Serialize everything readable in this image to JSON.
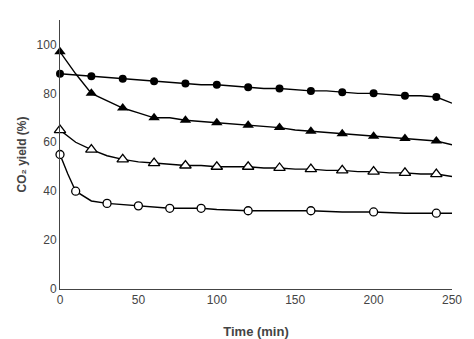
{
  "chart_data": {
    "type": "line",
    "xlabel": "Time (min)",
    "ylabel": "CO₂ yield (%)",
    "xlim": [
      0,
      250
    ],
    "ylim": [
      0,
      110
    ],
    "xticks": [
      0,
      50,
      100,
      150,
      200,
      250
    ],
    "yticks": [
      0,
      20,
      40,
      60,
      80,
      100
    ],
    "grid": false,
    "series": [
      {
        "type": "line",
        "line_style": "solid",
        "color": "#000000",
        "x": [
          0,
          10,
          20,
          30,
          40,
          50,
          60,
          70,
          80,
          90,
          100,
          110,
          120,
          130,
          140,
          150,
          160,
          170,
          180,
          190,
          200,
          210,
          220,
          230,
          240,
          250
        ],
        "values": [
          88,
          87.5,
          87,
          86.5,
          86,
          85.5,
          85,
          84.5,
          84,
          83.5,
          83.5,
          83,
          82.5,
          82,
          82,
          81.5,
          81,
          81,
          80.5,
          80,
          80,
          79.5,
          79,
          79,
          78.5,
          76
        ]
      },
      {
        "type": "scatter",
        "marker": "circle",
        "color": "#000000",
        "x": [
          0,
          20,
          40,
          60,
          80,
          100,
          120,
          140,
          160,
          180,
          200,
          220,
          240
        ],
        "values": [
          88,
          87,
          86,
          85,
          84,
          83.5,
          82.5,
          82,
          81,
          80.5,
          80,
          79,
          78.5
        ]
      },
      {
        "type": "line",
        "line_style": "solid",
        "color": "#000000",
        "x": [
          0,
          10,
          20,
          30,
          40,
          50,
          60,
          70,
          80,
          90,
          100,
          110,
          120,
          130,
          140,
          150,
          160,
          170,
          180,
          190,
          200,
          210,
          220,
          230,
          240,
          250
        ],
        "values": [
          97,
          88,
          80,
          77,
          74,
          72,
          70,
          70,
          69,
          68.5,
          68,
          67.5,
          67,
          66.5,
          66,
          65,
          64.5,
          64,
          63.5,
          63,
          62.5,
          62,
          61.5,
          61,
          60.5,
          59
        ]
      },
      {
        "type": "scatter",
        "marker": "triangle-up",
        "color": "#000000",
        "x": [
          0,
          20,
          40,
          60,
          80,
          100,
          120,
          140,
          160,
          180,
          200,
          220,
          240
        ],
        "values": [
          97,
          80,
          74,
          70,
          69,
          68,
          67,
          66,
          64.5,
          63.5,
          62.5,
          61.5,
          60.5
        ]
      },
      {
        "type": "line",
        "line_style": "solid",
        "color": "#000000",
        "x": [
          0,
          10,
          20,
          30,
          40,
          50,
          60,
          70,
          80,
          90,
          100,
          110,
          120,
          130,
          140,
          150,
          160,
          170,
          180,
          190,
          200,
          210,
          220,
          230,
          240,
          250
        ],
        "values": [
          65,
          60,
          57,
          54.5,
          53,
          52,
          51.5,
          51,
          50.5,
          50.5,
          50,
          50,
          50,
          49.5,
          49.5,
          49,
          49,
          48.5,
          48.5,
          48,
          48,
          47.5,
          47.5,
          47,
          47,
          46
        ]
      },
      {
        "type": "scatter",
        "marker": "triangle-up-open",
        "color": "#000000",
        "x": [
          0,
          20,
          40,
          60,
          80,
          100,
          120,
          140,
          160,
          180,
          200,
          220,
          240
        ],
        "values": [
          65,
          57,
          53,
          51.5,
          50.5,
          50,
          50,
          49.5,
          49,
          48.5,
          48,
          47.5,
          47
        ]
      },
      {
        "type": "line",
        "line_style": "solid",
        "color": "#000000",
        "x": [
          0,
          5,
          10,
          20,
          30,
          40,
          50,
          60,
          70,
          80,
          90,
          100,
          120,
          140,
          160,
          180,
          200,
          220,
          240,
          250
        ],
        "values": [
          55,
          47,
          40,
          36,
          35,
          34.5,
          34,
          33.5,
          33,
          33,
          33,
          32.5,
          32,
          32,
          32,
          31.5,
          31.5,
          31,
          31,
          31
        ]
      },
      {
        "type": "scatter",
        "marker": "circle-open",
        "color": "#000000",
        "x": [
          0,
          10,
          30,
          50,
          70,
          90,
          120,
          160,
          200,
          240
        ],
        "values": [
          55,
          40,
          35,
          34,
          33,
          33,
          32,
          32,
          31.5,
          31
        ]
      }
    ]
  }
}
